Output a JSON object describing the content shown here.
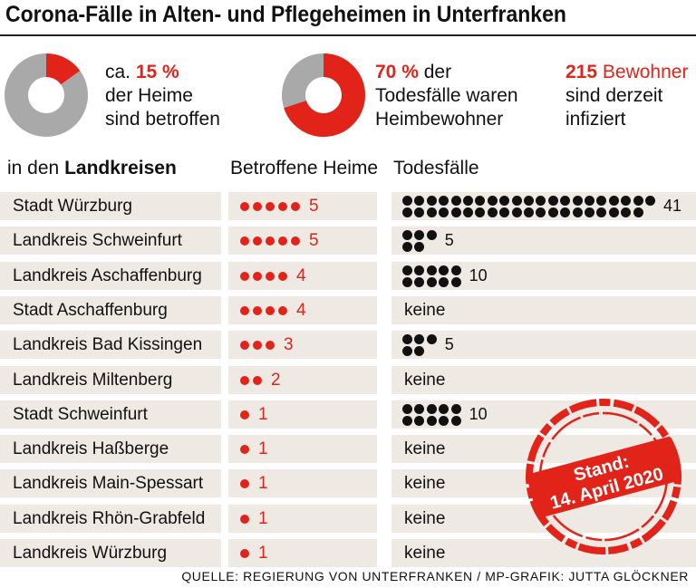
{
  "title": "Corona-Fälle in Alten- und Pflegeheimen in Unterfranken",
  "colors": {
    "red": "#e2231a",
    "grey": "#a9a9a9",
    "black": "#111111",
    "row_bg": "#efe9e3"
  },
  "stat1": {
    "prefix": "ca. ",
    "value": "15 %",
    "line2": "der Heime",
    "line3": "sind betroffen",
    "percent": 15
  },
  "stat2": {
    "value": "70 %",
    "suffix": " der",
    "line2": "Todesfälle waren",
    "line3": "Heimbewohner",
    "percent": 70
  },
  "stat3": {
    "value": "215",
    "suffix": " Bewohner",
    "line2": "sind derzeit",
    "line3": "infiziert"
  },
  "headers": {
    "col1_prefix": "in den ",
    "col1_bold": "Landkreisen",
    "col2": "Betroffene Heime",
    "col3": "Todesfälle"
  },
  "chart_data": {
    "type": "table",
    "columns": [
      "Landkreis",
      "Betroffene Heime",
      "Todesfälle"
    ],
    "rows": [
      {
        "name": "Stadt Würzburg",
        "heime": 5,
        "tote": 41,
        "tote_label": "41"
      },
      {
        "name": "Landkreis Schweinfurt",
        "heime": 5,
        "tote": 5,
        "tote_label": "5"
      },
      {
        "name": "Landkreis Aschaffenburg",
        "heime": 4,
        "tote": 10,
        "tote_label": "10"
      },
      {
        "name": "Stadt Aschaffenburg",
        "heime": 4,
        "tote": 0,
        "tote_label": "keine"
      },
      {
        "name": "Landkreis Bad Kissingen",
        "heime": 3,
        "tote": 5,
        "tote_label": "5"
      },
      {
        "name": "Landkreis Miltenberg",
        "heime": 2,
        "tote": 0,
        "tote_label": "keine"
      },
      {
        "name": "Stadt Schweinfurt",
        "heime": 1,
        "tote": 10,
        "tote_label": "10"
      },
      {
        "name": "Landkreis Haßberge",
        "heime": 1,
        "tote": 0,
        "tote_label": "keine"
      },
      {
        "name": "Landkreis Main-Spessart",
        "heime": 1,
        "tote": 0,
        "tote_label": "keine"
      },
      {
        "name": "Landkreis Rhön-Grabfeld",
        "heime": 1,
        "tote": 0,
        "tote_label": "keine"
      },
      {
        "name": "Landkreis Würzburg",
        "heime": 1,
        "tote": 0,
        "tote_label": "keine"
      }
    ]
  },
  "stamp": {
    "line1": "Stand:",
    "line2": "14. April 2020"
  },
  "source": "QUELLE: REGIERUNG VON UNTERFRANKEN / MP-GRAFIK: JUTTA GLÖCKNER"
}
